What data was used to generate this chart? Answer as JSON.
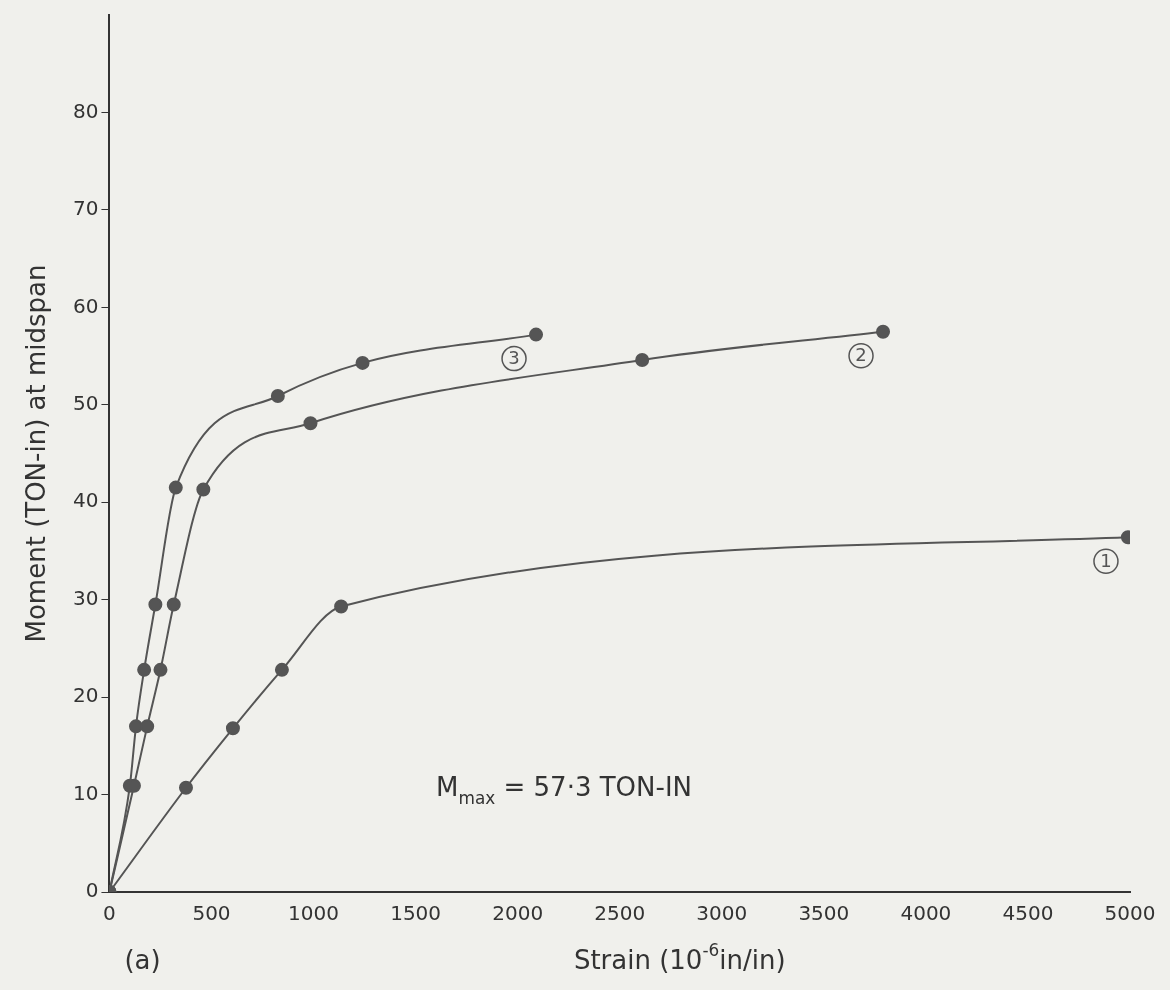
{
  "chart_data": {
    "type": "line",
    "xlabel": "Strain (10$^{-6}$in/in)",
    "ylabel": "Moment (TON-in) at midspan",
    "annotations": [
      "M$_{max}$ = 57·3 TON-IN",
      "(a)"
    ],
    "xlim": [
      0,
      5000
    ],
    "xticks": [
      0,
      500,
      1000,
      1500,
      2000,
      2500,
      3000,
      3500,
      4000,
      4500,
      5000
    ],
    "ylim": [
      0,
      90
    ],
    "yticks": [
      0,
      10,
      20,
      30,
      40,
      50,
      60,
      70,
      80
    ],
    "grid": false,
    "legend": false,
    "marker": "circle",
    "line_style": "solid",
    "series": [
      {
        "name": "1",
        "color": "#555555",
        "x": [
          0,
          375,
          605,
          845,
          1135,
          4990
        ],
        "values": [
          0,
          10.7,
          16.8,
          22.8,
          29.3,
          36.4
        ]
      },
      {
        "name": "2",
        "color": "#555555",
        "x": [
          0,
          120,
          185,
          250,
          315,
          460,
          985,
          2610,
          3790
        ],
        "values": [
          0,
          10.9,
          17,
          22.8,
          29.5,
          41.3,
          48.1,
          54.6,
          57.5
        ]
      },
      {
        "name": "3",
        "color": "#555555",
        "x": [
          0,
          100,
          130,
          170,
          225,
          325,
          825,
          1240,
          2090
        ],
        "values": [
          0,
          10.9,
          17,
          22.8,
          29.5,
          41.5,
          50.9,
          54.3,
          57.2
        ]
      }
    ]
  }
}
